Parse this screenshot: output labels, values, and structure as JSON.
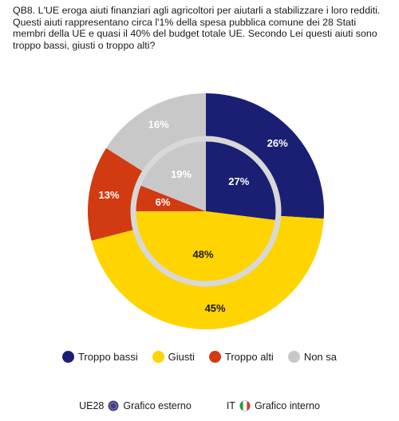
{
  "question": "QB8. L'UE eroga aiuti finanziari agli agricoltori per aiutarli a stabilizzare i loro redditi. Questi aiuti rappresentano circa l'1% della spesa pubblica comune dei 28 Stati membri della UE e quasi il 40% del budget totale UE. Secondo Lei questi aiuti sono troppo bassi, giusti o troppo alti?",
  "colors": {
    "troppo_bassi": "#1b1f74",
    "giusti": "#ffd400",
    "troppo_alti": "#d23a12",
    "non_sa": "#c8c8c8",
    "separator": "#d8d8d8"
  },
  "legend": [
    {
      "label": "Troppo bassi",
      "color": "#1b1f74"
    },
    {
      "label": "Giusti",
      "color": "#ffd400"
    },
    {
      "label": "Troppo alti",
      "color": "#d23a12"
    },
    {
      "label": "Non sa",
      "color": "#c8c8c8"
    }
  ],
  "footer": {
    "outer_prefix": "UE28",
    "outer_label": "Grafico esterno",
    "outer_icon": "eu-flag-icon",
    "inner_prefix": "IT",
    "inner_label": "Grafico interno",
    "inner_icon": "italy-flag-icon"
  },
  "chart_data": {
    "type": "pie",
    "subtype": "nested-donut",
    "categories": [
      "Troppo bassi",
      "Giusti",
      "Troppo alti",
      "Non sa"
    ],
    "series": [
      {
        "name": "UE28",
        "ring": "outer",
        "values": [
          26,
          45,
          13,
          16
        ],
        "labels": [
          "26%",
          "45%",
          "13%",
          "16%"
        ]
      },
      {
        "name": "IT",
        "ring": "inner",
        "values": [
          27,
          48,
          6,
          19
        ],
        "labels": [
          "27%",
          "48%",
          "6%",
          "19%"
        ]
      }
    ]
  }
}
